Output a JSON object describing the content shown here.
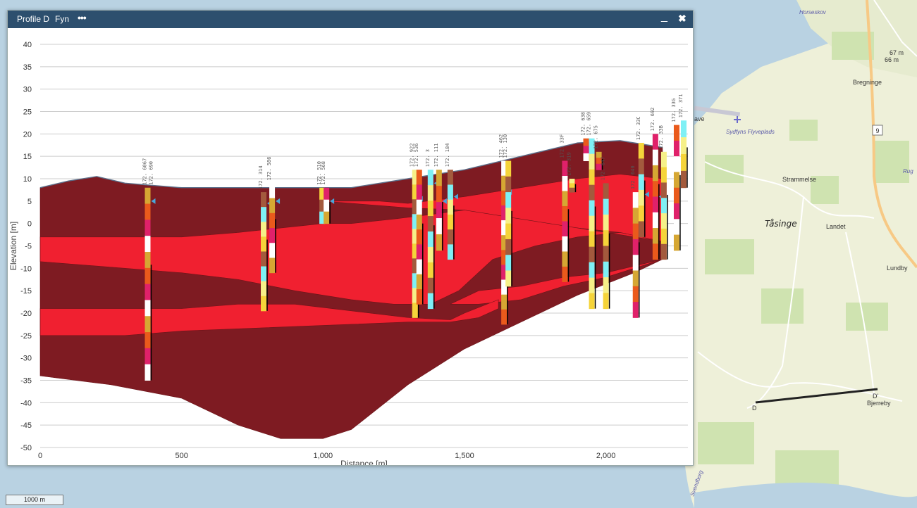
{
  "window": {
    "title": "Profile D",
    "subtitle": "Fyn",
    "menu_icon": "more-dots-icon",
    "minimize_icon": "minimize-icon",
    "close_icon": "close-icon"
  },
  "map": {
    "scale_label": "1000 m",
    "places": [
      {
        "name": "Horseskov"
      },
      {
        "name": "Bregninge"
      },
      {
        "name": "Sydfyns Flyveplads"
      },
      {
        "name": "Strammelse"
      },
      {
        "name": "Tåsinge"
      },
      {
        "name": "Landet"
      },
      {
        "name": "Lundby"
      },
      {
        "name": "Bjerreby"
      },
      {
        "name": "Rug"
      },
      {
        "name": "ave"
      },
      {
        "name": "Svendborg"
      }
    ],
    "road_shields": [
      "9"
    ],
    "elevation_marks": [
      "67 m",
      "66 m"
    ],
    "profile_endpoints": [
      "D",
      "D'"
    ]
  },
  "chart_data": {
    "type": "area",
    "xlabel": "Distance [m]",
    "ylabel": "Elevation [m]",
    "xlim": [
      0,
      2290
    ],
    "ylim": [
      -50,
      40
    ],
    "xticks": [
      0,
      500,
      1000,
      1500,
      2000
    ],
    "xtick_labels": [
      "0",
      "500",
      "1,000",
      "1,500",
      "2,000"
    ],
    "yticks": [
      40,
      35,
      30,
      25,
      20,
      15,
      10,
      5,
      0,
      -5,
      -10,
      -15,
      -20,
      -25,
      -30,
      -35,
      -40,
      -45,
      -50
    ],
    "grid": true,
    "colors": {
      "dark": "#7e1b22",
      "bright": "#f02030",
      "grid": "#cccccc"
    },
    "surface": [
      [
        0,
        8
      ],
      [
        100,
        9.5
      ],
      [
        200,
        10.5
      ],
      [
        300,
        9
      ],
      [
        500,
        8
      ],
      [
        700,
        8
      ],
      [
        1000,
        8
      ],
      [
        1100,
        8
      ],
      [
        1300,
        10
      ],
      [
        1500,
        12
      ],
      [
        1700,
        15
      ],
      [
        1900,
        18
      ],
      [
        2050,
        18.5
      ],
      [
        2150,
        17.5
      ],
      [
        2200,
        17
      ]
    ],
    "layers": [
      {
        "color": "dark",
        "top": [
          [
            0,
            8
          ],
          [
            100,
            9.5
          ],
          [
            200,
            10.5
          ],
          [
            300,
            9
          ],
          [
            500,
            8
          ],
          [
            700,
            8
          ],
          [
            1000,
            8
          ],
          [
            1100,
            8
          ],
          [
            1300,
            10
          ],
          [
            1500,
            12
          ],
          [
            1700,
            15
          ],
          [
            1900,
            18
          ],
          [
            2050,
            18.5
          ],
          [
            2150,
            17.5
          ],
          [
            2200,
            17
          ]
        ],
        "bottom": [
          [
            0,
            -34
          ],
          [
            250,
            -36
          ],
          [
            500,
            -39
          ],
          [
            700,
            -45
          ],
          [
            850,
            -48
          ],
          [
            1000,
            -48
          ],
          [
            1100,
            -46
          ],
          [
            1300,
            -36
          ],
          [
            1500,
            -28
          ],
          [
            1700,
            -22
          ],
          [
            1900,
            -16
          ],
          [
            2100,
            -11
          ],
          [
            2200,
            -8
          ]
        ]
      },
      {
        "color": "bright",
        "top": [
          [
            1000,
            5
          ],
          [
            1200,
            5
          ],
          [
            1300,
            4.5
          ],
          [
            1500,
            6
          ],
          [
            1700,
            8
          ],
          [
            1900,
            10
          ],
          [
            2050,
            11
          ],
          [
            2200,
            10
          ]
        ],
        "bottom": [
          [
            1000,
            5
          ],
          [
            1200,
            4
          ],
          [
            1300,
            3.5
          ],
          [
            1500,
            3
          ],
          [
            1700,
            0
          ],
          [
            1900,
            -1
          ],
          [
            2050,
            -2
          ],
          [
            2200,
            -4
          ]
        ]
      },
      {
        "color": "bright",
        "top": [
          [
            0,
            -3
          ],
          [
            250,
            -3
          ],
          [
            500,
            -3
          ],
          [
            700,
            -2
          ],
          [
            850,
            -1
          ],
          [
            1000,
            0
          ],
          [
            1100,
            0
          ],
          [
            1250,
            1
          ],
          [
            1380,
            2
          ],
          [
            1500,
            3
          ]
        ],
        "bottom": [
          [
            0,
            -8.5
          ],
          [
            300,
            -10
          ],
          [
            500,
            -11
          ],
          [
            700,
            -12.5
          ],
          [
            900,
            -15
          ],
          [
            1100,
            -17
          ],
          [
            1250,
            -18
          ],
          [
            1380,
            -18
          ],
          [
            1480,
            -15
          ],
          [
            1600,
            -8
          ],
          [
            1750,
            -5
          ],
          [
            1900,
            -3
          ],
          [
            2050,
            -2
          ],
          [
            2200,
            -4
          ]
        ]
      },
      {
        "color": "bright",
        "top": [
          [
            1450,
            -18
          ],
          [
            1550,
            -15
          ],
          [
            1700,
            -14
          ],
          [
            1850,
            -12
          ],
          [
            2000,
            -11
          ],
          [
            2200,
            -8
          ]
        ],
        "bottom": [
          [
            1450,
            -18
          ],
          [
            1550,
            -18
          ],
          [
            1700,
            -17
          ],
          [
            1850,
            -14
          ],
          [
            2000,
            -12
          ],
          [
            2200,
            -8
          ]
        ]
      },
      {
        "color": "bright",
        "top": [
          [
            0,
            -19
          ],
          [
            300,
            -19
          ],
          [
            500,
            -19
          ],
          [
            700,
            -18
          ],
          [
            900,
            -18
          ],
          [
            1100,
            -19.5
          ],
          [
            1300,
            -21
          ],
          [
            1450,
            -21.5
          ],
          [
            1500,
            -20
          ],
          [
            1620,
            -17
          ]
        ],
        "bottom": [
          [
            0,
            -25
          ],
          [
            300,
            -25
          ],
          [
            500,
            -24
          ],
          [
            700,
            -23.5
          ],
          [
            900,
            -23
          ],
          [
            1100,
            -22.5
          ],
          [
            1300,
            -22
          ],
          [
            1450,
            -22
          ],
          [
            1550,
            -21
          ],
          [
            1620,
            -19
          ]
        ]
      }
    ],
    "boreholes": [
      {
        "x": 380,
        "top": 8,
        "bottom": -35,
        "labels": [
          "172. 6067",
          "172. 690"
        ],
        "water": 5
      },
      {
        "x": 790,
        "top": 7,
        "bottom": -19.5,
        "labels": [
          "172. 314"
        ],
        "water": 4.5
      },
      {
        "x": 820,
        "top": 9,
        "bottom": -11,
        "labels": [
          "172. 586"
        ],
        "water": 5
      },
      {
        "x": 997,
        "top": 8,
        "bottom": 0,
        "labels": [
          "172. 510"
        ]
      },
      {
        "x": 1012,
        "top": 8,
        "bottom": 0,
        "labels": [
          "172. 568"
        ],
        "water": 5
      },
      {
        "x": 1325,
        "top": 12,
        "bottom": -21,
        "labels": [
          "172. 922"
        ],
        "water": 5.5
      },
      {
        "x": 1340,
        "top": 12,
        "bottom": -18,
        "labels": [
          "172. 536"
        ]
      },
      {
        "x": 1380,
        "top": 12,
        "bottom": -19,
        "labels": [
          "172. 3"
        ],
        "water": 9
      },
      {
        "x": 1410,
        "top": 12,
        "bottom": -6,
        "labels": [
          "172. 111"
        ],
        "water": 5
      },
      {
        "x": 1450,
        "top": 12,
        "bottom": -8,
        "labels": [
          "172. 184"
        ],
        "water": 6
      },
      {
        "x": 1640,
        "top": 14,
        "bottom": -22.5,
        "labels": [
          "172. 462"
        ],
        "water": 7
      },
      {
        "x": 1655,
        "top": 14,
        "bottom": -14,
        "labels": [
          "172. 130"
        ]
      },
      {
        "x": 1855,
        "top": 14,
        "bottom": -13,
        "labels": [
          "172. 33F"
        ]
      },
      {
        "x": 1880,
        "top": 10,
        "bottom": 7,
        "labels": [
          "172. 319"
        ]
      },
      {
        "x": 1930,
        "top": 19,
        "bottom": 14,
        "labels": [
          "172. 638"
        ]
      },
      {
        "x": 1950,
        "top": 19,
        "bottom": -19,
        "labels": [
          "172. 659"
        ]
      },
      {
        "x": 1975,
        "top": 16,
        "bottom": 12,
        "labels": [
          "172. 675"
        ]
      },
      {
        "x": 2000,
        "top": 9,
        "bottom": -19,
        "labels": [
          "172. 647"
        ]
      },
      {
        "x": 2105,
        "top": 7,
        "bottom": -21,
        "labels": [
          "172. 640"
        ]
      },
      {
        "x": 2125,
        "top": 18,
        "bottom": -3,
        "labels": [
          "172. 33C"
        ],
        "water": 6.5
      },
      {
        "x": 2175,
        "top": 20,
        "bottom": -8,
        "labels": [
          "172. 692"
        ],
        "water": 6
      },
      {
        "x": 2205,
        "top": 16,
        "bottom": -8,
        "labels": [
          "172. 33B"
        ]
      },
      {
        "x": 2250,
        "top": 22,
        "bottom": -6,
        "labels": [
          "172. 33G"
        ]
      },
      {
        "x": 2275,
        "top": 23,
        "bottom": 8,
        "labels": [
          "172. 371"
        ]
      }
    ]
  }
}
